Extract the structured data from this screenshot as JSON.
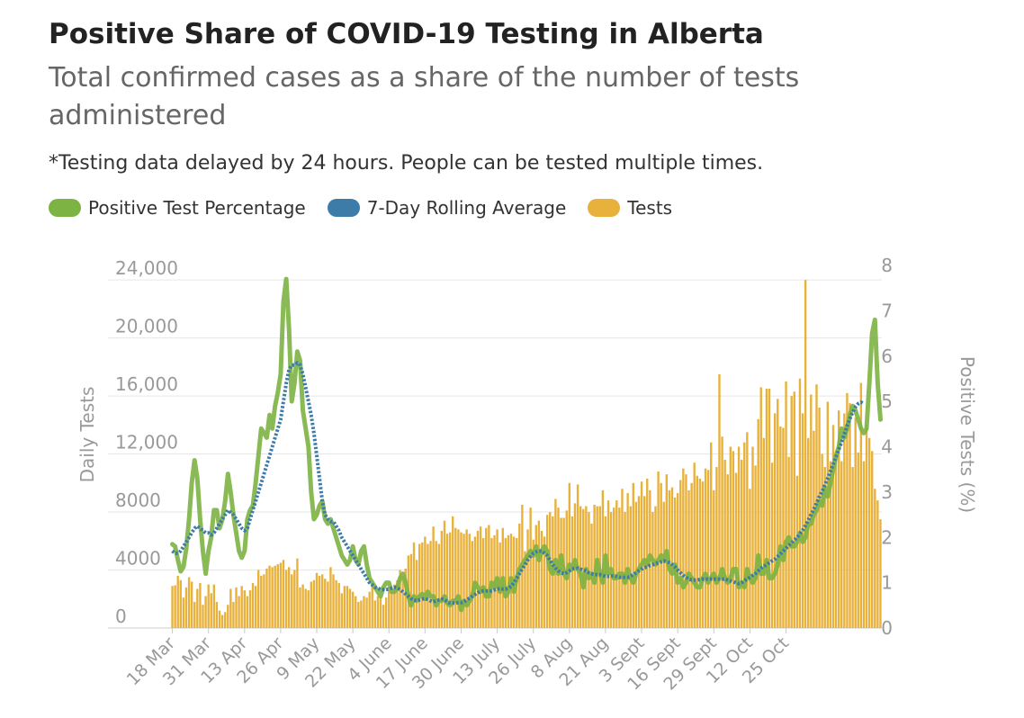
{
  "header": {
    "title": "Positive Share of COVID-19 Testing in Alberta",
    "subtitle": "Total confirmed cases as a share of the number of tests administered",
    "note": "*Testing data delayed by 24 hours. People can be tested multiple times."
  },
  "legend": [
    {
      "label": "Positive Test Percentage",
      "color": "#7cb342"
    },
    {
      "label": "7-Day Rolling Average",
      "color": "#3d7ba8"
    },
    {
      "label": "Tests",
      "color": "#e8b13b"
    }
  ],
  "chart_data": {
    "type": "bar",
    "start_date": "2020-03-18",
    "x_tick_labels": [
      "18 Mar",
      "31 Mar",
      "13 Apr",
      "26 Apr",
      "9 May",
      "22 May",
      "4 June",
      "17 June",
      "30 June",
      "13 July",
      "26 July",
      "8 Aug",
      "21 Aug",
      "3 Sept",
      "16 Sept",
      "29 Sept",
      "12 Oct",
      "25 Oct"
    ],
    "y_left": {
      "label": "Daily Tests",
      "ticks": [
        "0",
        "4000",
        "8000",
        "12,000",
        "16,000",
        "20,000",
        "24,000"
      ],
      "range": [
        0,
        25000
      ]
    },
    "y_right": {
      "label": "Positive Tests (%)",
      "ticks": [
        "0",
        "1",
        "2",
        "3",
        "4",
        "5",
        "6",
        "7",
        "8"
      ],
      "range": [
        0,
        8
      ]
    },
    "series": [
      {
        "name": "Tests",
        "kind": "bar",
        "color": "#e8b13b",
        "values": [
          2900,
          2950,
          3600,
          3300,
          2100,
          2800,
          3500,
          3200,
          1800,
          2700,
          3100,
          1600,
          2200,
          3000,
          2400,
          3000,
          1800,
          1200,
          900,
          1100,
          1600,
          2700,
          1800,
          2800,
          2200,
          2900,
          2600,
          2200,
          2600,
          3100,
          2900,
          4000,
          3600,
          3700,
          4100,
          4300,
          4200,
          4300,
          4400,
          4500,
          4700,
          4000,
          4200,
          3700,
          4000,
          4800,
          2800,
          3000,
          2700,
          2600,
          3200,
          3300,
          3800,
          3600,
          3700,
          3400,
          3200,
          4200,
          3700,
          3300,
          3100,
          2400,
          2900,
          2900,
          2700,
          2500,
          2200,
          1800,
          1900,
          2200,
          2100,
          2500,
          2900,
          1900,
          2200,
          2100,
          1600,
          2100,
          2600,
          2500,
          3000,
          3300,
          4000,
          3600,
          4100,
          5000,
          5100,
          5900,
          4700,
          5800,
          5900,
          6300,
          5800,
          6000,
          7000,
          6000,
          5800,
          6700,
          7400,
          6500,
          6600,
          7700,
          6900,
          6800,
          6600,
          6500,
          6800,
          6500,
          6000,
          6300,
          6700,
          7000,
          6200,
          6900,
          7100,
          6200,
          6400,
          6800,
          5900,
          6900,
          6200,
          6400,
          6500,
          6300,
          6200,
          7200,
          8500,
          5300,
          6800,
          8300,
          6100,
          7100,
          7400,
          6700,
          6300,
          7800,
          8000,
          7700,
          8900,
          8300,
          7600,
          7600,
          8100,
          10000,
          7700,
          8600,
          9900,
          8400,
          8200,
          8400,
          8000,
          7200,
          8500,
          8400,
          8400,
          9500,
          7700,
          8800,
          8000,
          8300,
          8800,
          8300,
          9600,
          8000,
          9300,
          8400,
          10000,
          8700,
          9100,
          10100,
          9100,
          10300,
          9500,
          8000,
          8400,
          10800,
          10000,
          8700,
          10600,
          9500,
          9700,
          9000,
          9300,
          10200,
          11000,
          10600,
          9500,
          10000,
          11400,
          10500,
          10300,
          10100,
          11000,
          10900,
          12800,
          9500,
          11100,
          17500,
          13200,
          11600,
          10600,
          12500,
          12200,
          10700,
          12500,
          11600,
          12800,
          13500,
          9600,
          12500,
          11200,
          14400,
          16600,
          13100,
          16500,
          16500,
          11400,
          14800,
          15800,
          13900,
          13800,
          17000,
          11800,
          16000,
          16300,
          10500,
          17200,
          14800,
          24000,
          13100,
          16100,
          13600,
          16800,
          15200,
          12000,
          11100,
          15600,
          11500,
          14000,
          12200,
          15000,
          11500,
          14800,
          16200,
          15500,
          11100,
          14500,
          12100,
          16900,
          11500,
          14000,
          13100,
          12200,
          9600,
          8800,
          7500
        ]
      },
      {
        "name": "Positive Test Percentage",
        "kind": "line",
        "axis": "right",
        "color": "#7cb342",
        "values": [
          1.85,
          1.8,
          1.5,
          1.25,
          1.35,
          1.75,
          2.4,
          3.2,
          3.7,
          3.3,
          2.4,
          1.7,
          1.2,
          1.7,
          2.0,
          2.6,
          2.6,
          2.2,
          2.4,
          2.8,
          3.4,
          3.0,
          2.5,
          2.1,
          1.7,
          1.55,
          1.7,
          2.4,
          2.6,
          2.7,
          3.2,
          3.8,
          4.4,
          4.3,
          4.2,
          4.7,
          4.4,
          4.9,
          5.2,
          5.6,
          7.2,
          7.7,
          6.6,
          5.0,
          5.4,
          6.1,
          5.9,
          4.8,
          4.4,
          4.0,
          3.0,
          2.4,
          2.5,
          2.7,
          2.8,
          2.4,
          2.3,
          2.4,
          2.2,
          2.0,
          1.8,
          1.6,
          1.5,
          1.4,
          1.5,
          1.8,
          1.5,
          1.4,
          1.7,
          1.8,
          1.4,
          1.1,
          1.0,
          0.9,
          0.8,
          0.7,
          0.9,
          1.0,
          1.0,
          0.8,
          0.8,
          0.9,
          1.1,
          1.2,
          1.0,
          0.7,
          0.5,
          0.7,
          0.6,
          0.7,
          0.75,
          0.65,
          0.8,
          0.7,
          0.7,
          0.5,
          0.6,
          0.6,
          0.7,
          0.55,
          0.5,
          0.6,
          0.6,
          0.7,
          0.4,
          0.6,
          0.5,
          0.6,
          0.7,
          1.0,
          0.9,
          0.8,
          0.9,
          0.7,
          0.7,
          1.0,
          0.9,
          1.1,
          0.8,
          1.1,
          0.7,
          0.8,
          1.1,
          0.8,
          1.1,
          1.3,
          1.4,
          1.5,
          1.6,
          1.7,
          1.6,
          1.8,
          1.5,
          1.7,
          1.8,
          1.7,
          1.3,
          1.2,
          1.5,
          1.2,
          1.6,
          1.2,
          1.1,
          1.4,
          1.3,
          1.5,
          1.3,
          1.2,
          0.9,
          1.3,
          1.1,
          1.2,
          1.0,
          1.5,
          1.2,
          1.0,
          1.6,
          1.2,
          1.3,
          1.1,
          1.1,
          1.2,
          1.2,
          1.0,
          1.3,
          1.1,
          1.0,
          1.2,
          1.3,
          1.4,
          1.5,
          1.4,
          1.6,
          1.5,
          1.4,
          1.5,
          1.6,
          1.5,
          1.7,
          1.3,
          1.2,
          1.4,
          1.0,
          1.1,
          0.9,
          1.0,
          1.2,
          1.1,
          1.0,
          0.9,
          0.9,
          1.1,
          1.2,
          1.0,
          1.1,
          1.2,
          1.0,
          1.1,
          1.3,
          1.1,
          1.0,
          1.1,
          1.3,
          1.3,
          0.9,
          1.0,
          0.9,
          1.3,
          1.1,
          1.0,
          1.1,
          1.6,
          1.2,
          1.2,
          1.5,
          1.1,
          1.1,
          1.2,
          1.4,
          1.8,
          1.5,
          1.9,
          2.0,
          1.8,
          1.8,
          1.9,
          2.1,
          1.9,
          2.0,
          2.3,
          2.3,
          2.5,
          2.6,
          2.8,
          2.7,
          3.1,
          2.9,
          3.2,
          3.5,
          3.8,
          4.0,
          4.4,
          4.2,
          4.4,
          4.7,
          4.9,
          4.8,
          4.6,
          4.4,
          4.3,
          4.4,
          5.4,
          6.5,
          6.8,
          5.4,
          4.6
        ]
      },
      {
        "name": "7-Day Rolling Average",
        "kind": "line",
        "axis": "right",
        "style": "dotted",
        "color": "#3d7ba8",
        "values": [
          1.7,
          1.65,
          1.65,
          1.7,
          1.8,
          1.9,
          2.0,
          2.1,
          2.2,
          2.25,
          2.2,
          2.15,
          2.1,
          2.1,
          2.05,
          2.1,
          2.2,
          2.3,
          2.4,
          2.5,
          2.6,
          2.55,
          2.5,
          2.4,
          2.3,
          2.2,
          2.15,
          2.2,
          2.4,
          2.6,
          2.8,
          3.0,
          3.2,
          3.4,
          3.6,
          3.8,
          4.0,
          4.2,
          4.4,
          4.6,
          5.0,
          5.4,
          5.7,
          5.8,
          5.8,
          5.85,
          5.8,
          5.6,
          5.3,
          5.0,
          4.7,
          4.3,
          3.8,
          3.3,
          2.8,
          2.5,
          2.4,
          2.35,
          2.35,
          2.25,
          2.15,
          2.0,
          1.9,
          1.8,
          1.7,
          1.6,
          1.5,
          1.4,
          1.3,
          1.2,
          1.1,
          1.0,
          0.95,
          0.9,
          0.88,
          0.85,
          0.85,
          0.85,
          0.86,
          0.88,
          0.9,
          0.88,
          0.85,
          0.8,
          0.75,
          0.7,
          0.65,
          0.62,
          0.6,
          0.62,
          0.64,
          0.65,
          0.63,
          0.6,
          0.58,
          0.6,
          0.62,
          0.64,
          0.62,
          0.58,
          0.55,
          0.55,
          0.55,
          0.56,
          0.56,
          0.58,
          0.62,
          0.66,
          0.7,
          0.74,
          0.78,
          0.8,
          0.82,
          0.82,
          0.82,
          0.82,
          0.84,
          0.86,
          0.87,
          0.86,
          0.86,
          0.88,
          0.92,
          1.0,
          1.1,
          1.2,
          1.3,
          1.4,
          1.5,
          1.58,
          1.65,
          1.68,
          1.7,
          1.7,
          1.65,
          1.6,
          1.5,
          1.4,
          1.32,
          1.26,
          1.22,
          1.2,
          1.22,
          1.26,
          1.3,
          1.32,
          1.32,
          1.3,
          1.28,
          1.26,
          1.22,
          1.2,
          1.18,
          1.18,
          1.18,
          1.16,
          1.14,
          1.14,
          1.15,
          1.15,
          1.14,
          1.12,
          1.12,
          1.12,
          1.12,
          1.14,
          1.18,
          1.22,
          1.26,
          1.3,
          1.33,
          1.35,
          1.38,
          1.4,
          1.42,
          1.44,
          1.46,
          1.48,
          1.46,
          1.44,
          1.4,
          1.35,
          1.28,
          1.22,
          1.16,
          1.12,
          1.08,
          1.06,
          1.06,
          1.06,
          1.07,
          1.08,
          1.08,
          1.08,
          1.08,
          1.08,
          1.08,
          1.08,
          1.08,
          1.08,
          1.06,
          1.04,
          1.02,
          1.0,
          0.98,
          1.0,
          1.04,
          1.08,
          1.12,
          1.16,
          1.2,
          1.26,
          1.32,
          1.36,
          1.4,
          1.44,
          1.48,
          1.52,
          1.58,
          1.64,
          1.7,
          1.76,
          1.82,
          1.88,
          1.94,
          2.0,
          2.08,
          2.16,
          2.26,
          2.38,
          2.5,
          2.62,
          2.76,
          2.9,
          3.02,
          3.16,
          3.3,
          3.46,
          3.62,
          3.78,
          3.94,
          4.1,
          4.28,
          4.46,
          4.62,
          4.76,
          4.88,
          4.95,
          4.98,
          4.95
        ]
      }
    ]
  }
}
